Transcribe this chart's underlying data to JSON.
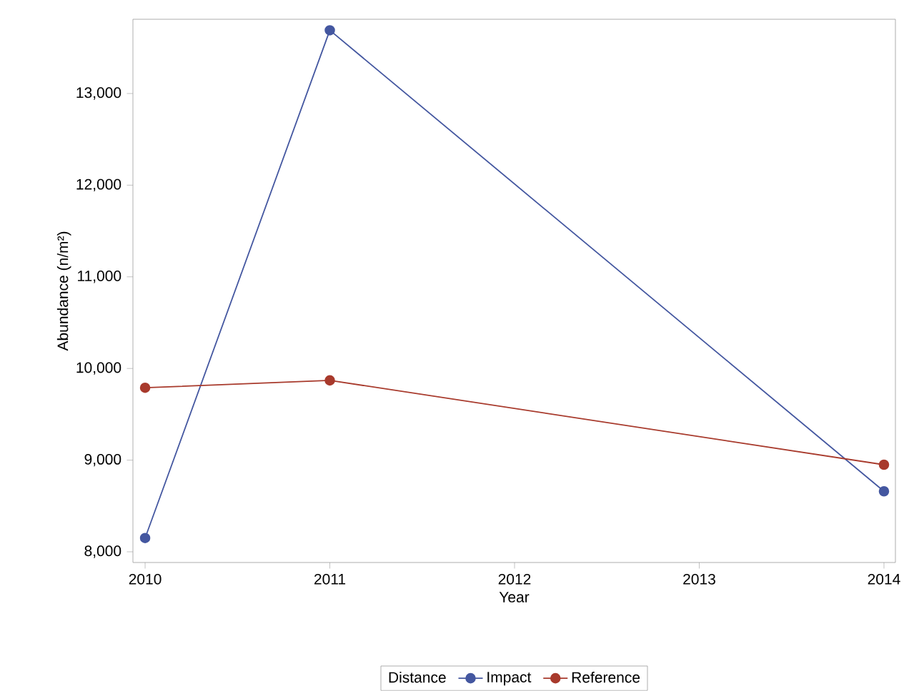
{
  "chart_data": {
    "type": "line",
    "xlabel": "Year",
    "ylabel": "Abundance (n/m²)",
    "legend_title": "Distance",
    "x": [
      2010,
      2011,
      2014
    ],
    "series": [
      {
        "name": "Impact",
        "color": "#4457a0",
        "values": [
          8150,
          13690,
          8660
        ]
      },
      {
        "name": "Reference",
        "color": "#a83a2c",
        "values": [
          9790,
          9870,
          8950
        ]
      }
    ],
    "xlim": [
      2009.934,
      2014.062
    ],
    "ylim": [
      7883,
      13810
    ],
    "xticks": [
      2010,
      2011,
      2012,
      2013,
      2014
    ],
    "yticks": [
      {
        "value": 8000,
        "label": "8,000"
      },
      {
        "value": 9000,
        "label": "9,000"
      },
      {
        "value": 10000,
        "label": "10,000"
      },
      {
        "value": 11000,
        "label": "11,000"
      },
      {
        "value": 12000,
        "label": "12,000"
      },
      {
        "value": 13000,
        "label": "13,000"
      }
    ],
    "grid": false,
    "legend": "bottom",
    "marker": "circle",
    "line_style": "solid"
  }
}
